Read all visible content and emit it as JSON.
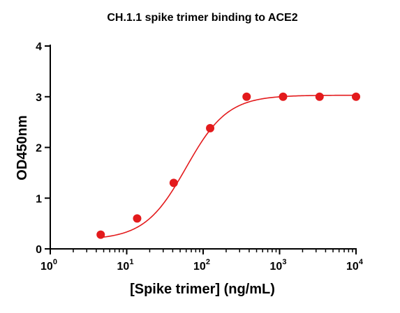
{
  "chart_data": {
    "type": "scatter",
    "title": "CH.1.1 spike trimer binding to ACE2",
    "xlabel": "[Spike trimer] (ng/mL)",
    "ylabel": "OD450nm",
    "x_scale": "log10",
    "xlim": [
      1,
      10000
    ],
    "ylim": [
      0,
      4
    ],
    "x_ticks": [
      {
        "base": "10",
        "exp": "0"
      },
      {
        "base": "10",
        "exp": "1"
      },
      {
        "base": "10",
        "exp": "2"
      },
      {
        "base": "10",
        "exp": "3"
      },
      {
        "base": "10",
        "exp": "4"
      }
    ],
    "y_ticks": [
      "0",
      "1",
      "2",
      "3",
      "4"
    ],
    "grid": false,
    "colors": {
      "series": "#e31a1c",
      "axis": "#000000"
    },
    "series": [
      {
        "x": [
          4.57,
          13.7,
          41.2,
          123.5,
          370.4,
          1111,
          3333,
          10000
        ],
        "y": [
          0.28,
          0.6,
          1.3,
          2.38,
          3.0,
          3.0,
          3.0,
          3.0
        ],
        "fit": {
          "model": "4PL",
          "bottom": 0.18,
          "top": 3.03,
          "ec50": 60,
          "hill": 1.6
        }
      }
    ]
  }
}
